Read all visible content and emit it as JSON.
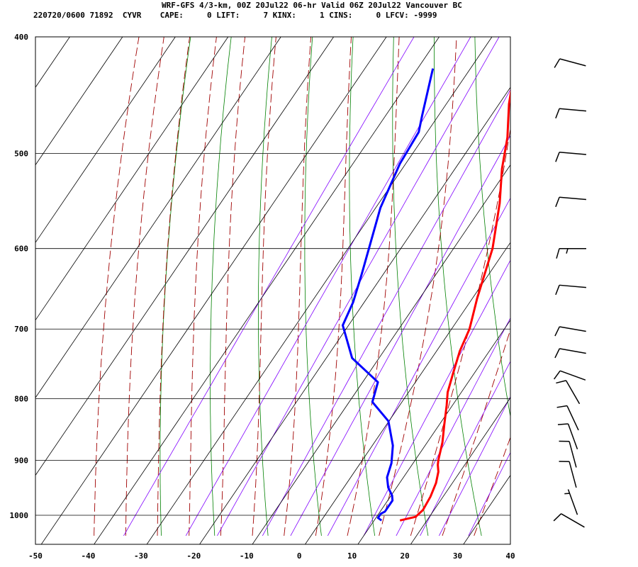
{
  "header": {
    "line1": "WRF-GFS 4/3-km, 00Z 20Jul22 06-hr Valid 06Z 20Jul22 Vancouver BC",
    "line2": "220720/0600 71892  CYVR    CAPE:     0 LIFT:     7 KINX:     1 CINS:     0 LFCV: -9999"
  },
  "chart_data": {
    "type": "line",
    "title": "WRF-GFS 4/3-km, 00Z 20Jul22 06-hr Valid 06Z 20Jul22 Vancouver BC",
    "subtitle": "220720/0600 71892  CYVR    CAPE:     0 LIFT:     7 KINX:     1 CINS:     0 LFCV: -9999",
    "xlabel": "",
    "ylabel": "",
    "x_range": [
      -50,
      40
    ],
    "y_range_hpa": [
      1040,
      400
    ],
    "y_scale": "log",
    "grid": true,
    "x_ticks": [
      -50,
      -40,
      -30,
      -20,
      -10,
      0,
      10,
      20,
      30,
      40
    ],
    "y_ticks": [
      400,
      500,
      600,
      700,
      800,
      900,
      1000
    ],
    "series": [
      {
        "color": "#ff0000",
        "points": [
          [
            16,
            1010
          ],
          [
            18.5,
            1003
          ],
          [
            19,
            990
          ],
          [
            18.7,
            965
          ],
          [
            18,
            940
          ],
          [
            17,
            920
          ],
          [
            16,
            908
          ],
          [
            15.5,
            900
          ],
          [
            14,
            870
          ],
          [
            12,
            840
          ],
          [
            10,
            810
          ],
          [
            8.5,
            790
          ],
          [
            7,
            760
          ],
          [
            5.5,
            730
          ],
          [
            4.5,
            700
          ],
          [
            2,
            660
          ],
          [
            0,
            625
          ],
          [
            -1.5,
            600
          ],
          [
            -6,
            550
          ],
          [
            -10,
            515
          ],
          [
            -13,
            485
          ],
          [
            -17,
            455
          ],
          [
            -20.5,
            425
          ]
        ]
      },
      {
        "color": "#0000ff",
        "points": [
          [
            12.5,
            1010
          ],
          [
            11.5,
            1005
          ],
          [
            11.5,
            997
          ],
          [
            12,
            993
          ],
          [
            12,
            972
          ],
          [
            11.3,
            963
          ],
          [
            9.5,
            948
          ],
          [
            8,
            930
          ],
          [
            7,
            905
          ],
          [
            5,
            875
          ],
          [
            1,
            835
          ],
          [
            -4.5,
            805
          ],
          [
            -6,
            775
          ],
          [
            -14,
            740
          ],
          [
            -20,
            695
          ],
          [
            -21,
            665
          ],
          [
            -23,
            630
          ],
          [
            -28,
            555
          ],
          [
            -30,
            510
          ],
          [
            -30.5,
            480
          ],
          [
            -32,
            465
          ],
          [
            -36,
            425
          ]
        ]
      }
    ],
    "wind_barbs": [
      {
        "hpa": 1010,
        "speed_kt": 10,
        "dir_deg": 300
      },
      {
        "hpa": 975,
        "speed_kt": 5,
        "dir_deg": 340
      },
      {
        "hpa": 925,
        "speed_kt": 10,
        "dir_deg": 345
      },
      {
        "hpa": 890,
        "speed_kt": 10,
        "dir_deg": 345
      },
      {
        "hpa": 860,
        "speed_kt": 10,
        "dir_deg": 340
      },
      {
        "hpa": 830,
        "speed_kt": 10,
        "dir_deg": 335
      },
      {
        "hpa": 790,
        "speed_kt": 10,
        "dir_deg": 330
      },
      {
        "hpa": 765,
        "speed_kt": 10,
        "dir_deg": 290
      },
      {
        "hpa": 730,
        "speed_kt": 10,
        "dir_deg": 280
      },
      {
        "hpa": 700,
        "speed_kt": 10,
        "dir_deg": 280
      },
      {
        "hpa": 645,
        "speed_kt": 10,
        "dir_deg": 275
      },
      {
        "hpa": 600,
        "speed_kt": 15,
        "dir_deg": 270
      },
      {
        "hpa": 545,
        "speed_kt": 10,
        "dir_deg": 275
      },
      {
        "hpa": 500,
        "speed_kt": 10,
        "dir_deg": 275
      },
      {
        "hpa": 460,
        "speed_kt": 10,
        "dir_deg": 275
      },
      {
        "hpa": 420,
        "speed_kt": 10,
        "dir_deg": 285
      }
    ],
    "colors": {
      "dry_adiabats": "#008000",
      "moist_adiabats": "#a00000",
      "mixing_ratio": "#8000ff",
      "grid": "#000000"
    }
  }
}
